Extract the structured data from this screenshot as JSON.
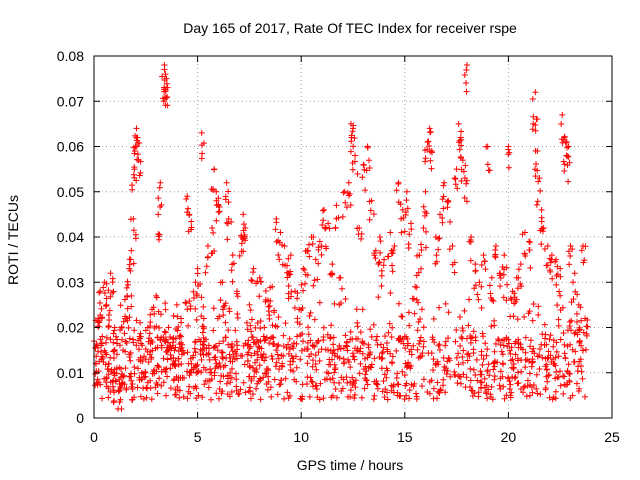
{
  "chart_data": {
    "type": "scatter",
    "title": "Day 165 of 2017, Rate Of TEC Index for receiver rspe",
    "xlabel": "GPS time / hours",
    "ylabel": "ROTI / TECUs",
    "xlim": [
      0,
      25
    ],
    "ylim": [
      0,
      0.08
    ],
    "x_ticks": [
      "0",
      "5",
      "10",
      "15",
      "20",
      "25"
    ],
    "y_ticks": [
      "0",
      "0.01",
      "0.02",
      "0.03",
      "0.04",
      "0.05",
      "0.06",
      "0.07",
      "0.08"
    ],
    "grid": true,
    "marker": "+",
    "color": "#ff0000",
    "series": [
      {
        "name": "ROTI",
        "points": [
          [
            0.1,
            0.012
          ],
          [
            0.2,
            0.022
          ],
          [
            0.3,
            0.028
          ],
          [
            0.4,
            0.018
          ],
          [
            0.5,
            0.03
          ],
          [
            0.6,
            0.025
          ],
          [
            0.7,
            0.012
          ],
          [
            0.8,
            0.032
          ],
          [
            0.9,
            0.008
          ],
          [
            1.0,
            0.02
          ],
          [
            1.1,
            0.011
          ],
          [
            1.2,
            0.006
          ],
          [
            1.3,
            0.009
          ],
          [
            1.4,
            0.015
          ],
          [
            1.5,
            0.022
          ],
          [
            1.6,
            0.027
          ],
          [
            1.7,
            0.033
          ],
          [
            1.8,
            0.037
          ],
          [
            1.9,
            0.044
          ],
          [
            1.95,
            0.055
          ],
          [
            2.0,
            0.06
          ],
          [
            2.05,
            0.064
          ],
          [
            2.1,
            0.062
          ],
          [
            2.15,
            0.057
          ],
          [
            2.2,
            0.018
          ],
          [
            2.3,
            0.01
          ],
          [
            2.5,
            0.013
          ],
          [
            2.6,
            0.02
          ],
          [
            2.8,
            0.024
          ],
          [
            3.0,
            0.027
          ],
          [
            3.1,
            0.045
          ],
          [
            3.2,
            0.052
          ],
          [
            3.4,
            0.078
          ],
          [
            3.45,
            0.076
          ],
          [
            3.5,
            0.075
          ],
          [
            3.55,
            0.073
          ],
          [
            3.6,
            0.02
          ],
          [
            3.8,
            0.016
          ],
          [
            4.0,
            0.025
          ],
          [
            4.2,
            0.022
          ],
          [
            4.5,
            0.049
          ],
          [
            4.6,
            0.045
          ],
          [
            4.7,
            0.012
          ],
          [
            4.9,
            0.03
          ],
          [
            5.0,
            0.033
          ],
          [
            5.2,
            0.063
          ],
          [
            5.3,
            0.022
          ],
          [
            5.5,
            0.038
          ],
          [
            5.7,
            0.042
          ],
          [
            5.8,
            0.055
          ],
          [
            5.9,
            0.05
          ],
          [
            6.0,
            0.047
          ],
          [
            6.2,
            0.03
          ],
          [
            6.4,
            0.052
          ],
          [
            6.5,
            0.044
          ],
          [
            6.7,
            0.036
          ],
          [
            6.9,
            0.028
          ],
          [
            7.1,
            0.04
          ],
          [
            7.2,
            0.045
          ],
          [
            7.3,
            0.042
          ],
          [
            7.5,
            0.025
          ],
          [
            7.7,
            0.033
          ],
          [
            7.9,
            0.021
          ],
          [
            8.0,
            0.031
          ],
          [
            8.2,
            0.018
          ],
          [
            8.4,
            0.026
          ],
          [
            8.6,
            0.029
          ],
          [
            8.8,
            0.044
          ],
          [
            9.0,
            0.041
          ],
          [
            9.2,
            0.038
          ],
          [
            9.4,
            0.032
          ],
          [
            9.5,
            0.036
          ],
          [
            9.7,
            0.028
          ],
          [
            9.9,
            0.024
          ],
          [
            10.1,
            0.033
          ],
          [
            10.3,
            0.037
          ],
          [
            10.5,
            0.04
          ],
          [
            10.7,
            0.035
          ],
          [
            10.9,
            0.039
          ],
          [
            11.1,
            0.046
          ],
          [
            11.3,
            0.043
          ],
          [
            11.5,
            0.034
          ],
          [
            11.7,
            0.047
          ],
          [
            11.9,
            0.031
          ],
          [
            12.1,
            0.05
          ],
          [
            12.3,
            0.052
          ],
          [
            12.4,
            0.065
          ],
          [
            12.5,
            0.064
          ],
          [
            12.6,
            0.058
          ],
          [
            12.8,
            0.042
          ],
          [
            13.0,
            0.056
          ],
          [
            13.2,
            0.06
          ],
          [
            13.4,
            0.048
          ],
          [
            13.6,
            0.037
          ],
          [
            13.8,
            0.04
          ],
          [
            14.0,
            0.035
          ],
          [
            14.3,
            0.041
          ],
          [
            14.5,
            0.038
          ],
          [
            14.7,
            0.052
          ],
          [
            14.9,
            0.046
          ],
          [
            15.1,
            0.05
          ],
          [
            15.3,
            0.043
          ],
          [
            15.5,
            0.029
          ],
          [
            15.7,
            0.036
          ],
          [
            15.9,
            0.042
          ],
          [
            16.0,
            0.05
          ],
          [
            16.1,
            0.061
          ],
          [
            16.2,
            0.064
          ],
          [
            16.3,
            0.059
          ],
          [
            16.5,
            0.04
          ],
          [
            16.7,
            0.045
          ],
          [
            16.9,
            0.052
          ],
          [
            17.1,
            0.048
          ],
          [
            17.3,
            0.038
          ],
          [
            17.5,
            0.055
          ],
          [
            17.6,
            0.065
          ],
          [
            17.7,
            0.062
          ],
          [
            17.8,
            0.057
          ],
          [
            17.9,
            0.053
          ],
          [
            18.0,
            0.078
          ],
          [
            18.2,
            0.04
          ],
          [
            18.4,
            0.034
          ],
          [
            18.6,
            0.03
          ],
          [
            18.8,
            0.036
          ],
          [
            19.0,
            0.06
          ],
          [
            19.2,
            0.031
          ],
          [
            19.4,
            0.038
          ],
          [
            19.6,
            0.032
          ],
          [
            19.8,
            0.036
          ],
          [
            20.0,
            0.06
          ],
          [
            20.2,
            0.028
          ],
          [
            20.4,
            0.031
          ],
          [
            20.6,
            0.034
          ],
          [
            20.8,
            0.041
          ],
          [
            21.0,
            0.039
          ],
          [
            21.2,
            0.065
          ],
          [
            21.3,
            0.072
          ],
          [
            21.4,
            0.059
          ],
          [
            21.5,
            0.053
          ],
          [
            21.6,
            0.046
          ],
          [
            21.7,
            0.042
          ],
          [
            21.9,
            0.038
          ],
          [
            22.1,
            0.036
          ],
          [
            22.3,
            0.035
          ],
          [
            22.5,
            0.033
          ],
          [
            22.6,
            0.067
          ],
          [
            22.7,
            0.062
          ],
          [
            22.8,
            0.058
          ],
          [
            22.9,
            0.06
          ],
          [
            23.0,
            0.038
          ],
          [
            23.2,
            0.032
          ],
          [
            23.4,
            0.025
          ],
          [
            23.6,
            0.038
          ],
          [
            23.7,
            0.022
          ]
        ],
        "background_band": {
          "x_range": [
            0,
            23.8
          ],
          "baseline_min": 0.004,
          "baseline_max": 0.018,
          "density": 1200
        }
      }
    ]
  }
}
